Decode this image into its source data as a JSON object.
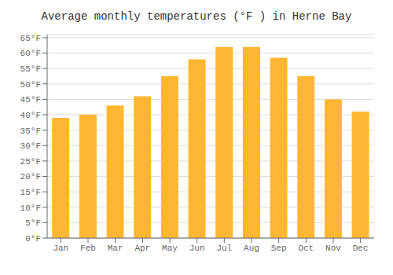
{
  "chart_data": {
    "type": "bar",
    "title": "Average monthly temperatures (°F ) in Herne Bay",
    "categories": [
      "Jan",
      "Feb",
      "Mar",
      "Apr",
      "May",
      "Jun",
      "Jul",
      "Aug",
      "Sep",
      "Oct",
      "Nov",
      "Dec"
    ],
    "values": [
      39,
      40,
      43,
      46,
      52.5,
      58,
      62,
      62,
      58.5,
      52.5,
      45,
      41
    ],
    "color": "#FFB733",
    "ylim": [
      0,
      66
    ],
    "yticks": [
      {
        "value": 0,
        "label": "0°F"
      },
      {
        "value": 5,
        "label": "5°F"
      },
      {
        "value": 10,
        "label": "10°F"
      },
      {
        "value": 15,
        "label": "15°F"
      },
      {
        "value": 20,
        "label": "20°F"
      },
      {
        "value": 25,
        "label": "25°F"
      },
      {
        "value": 30,
        "label": "30°F"
      },
      {
        "value": 35,
        "label": "35°F"
      },
      {
        "value": 40,
        "label": "40°F"
      },
      {
        "value": 45,
        "label": "45°F"
      },
      {
        "value": 50,
        "label": "50°F"
      },
      {
        "value": 55,
        "label": "55°F"
      },
      {
        "value": 60,
        "label": "60°F"
      },
      {
        "value": 65,
        "label": "65°F"
      }
    ],
    "grid": true
  }
}
